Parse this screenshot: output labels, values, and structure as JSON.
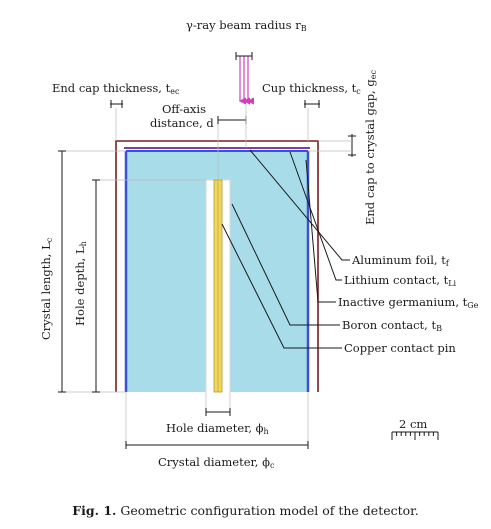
{
  "figure": {
    "beam_label": "γ-ray beam radius r",
    "beam_sub": "B",
    "end_cap_thickness_label": "End cap thickness, t",
    "end_cap_thickness_sub": "ec",
    "cup_thickness_label": "Cup thickness, t",
    "cup_thickness_sub": "c",
    "offaxis_line1": "Off-axis",
    "offaxis_line2": "distance, d",
    "gap_label": "End cap to crystal gap, g",
    "gap_sub": "ec",
    "crystal_length_label": "Crystal length, L",
    "crystal_length_sub": "c",
    "hole_depth_label": "Hole depth, L",
    "hole_depth_sub": "h",
    "hole_diameter_label": "Hole diameter, ϕ",
    "hole_diameter_sub": "h",
    "crystal_diameter_label": "Crystal diameter, ϕ",
    "crystal_diameter_sub": "c",
    "scale_label": "2 cm",
    "callouts": [
      {
        "text": "Aluminum foil, t",
        "sub": "f"
      },
      {
        "text": "Lithium contact, t",
        "sub": "Li"
      },
      {
        "text": "Inactive germanium, t",
        "sub": "Ge"
      },
      {
        "text": "Boron contact, t",
        "sub": "B"
      },
      {
        "text": "Copper contact pin",
        "sub": ""
      }
    ]
  },
  "caption": {
    "prefix": "Fig. 1.",
    "text": "Geometric configuration model of the detector."
  },
  "colors": {
    "crystal_fill": "#a8dce9",
    "endcap": "#7a1f1f",
    "aluminum": "#7a3fb0",
    "lithium": "#3b4fd8",
    "beam": "#d13fbf",
    "pin": "#f0d860"
  }
}
